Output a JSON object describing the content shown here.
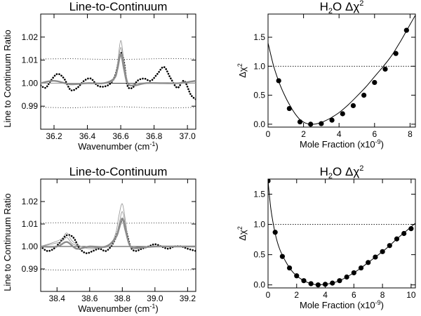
{
  "chart_data": [
    {
      "type": "line",
      "panel": "top-left",
      "title": "Line-to-Continuum",
      "xlabel": "Wavenumber (cm",
      "xlabel_sup": "-1",
      "xlabel_end": ")",
      "ylabel": "Line to Continuum Ratio",
      "xlim": [
        36.12,
        37.05
      ],
      "ylim": [
        0.98,
        1.03
      ],
      "xticks": [
        36.2,
        36.4,
        36.6,
        36.8,
        37.0
      ],
      "xtick_labels": [
        "36.2",
        "36.4",
        "36.6",
        "36.8",
        "37.0"
      ],
      "yticks": [
        0.99,
        1.0,
        1.01,
        1.02
      ],
      "ytick_labels": [
        "0.99",
        "1.00",
        "1.01",
        "1.02"
      ],
      "reference_line": 1.0,
      "noise_bounds": {
        "upper": {
          "x": [
            36.12,
            36.3,
            36.45,
            36.6,
            36.75,
            36.9,
            37.05
          ],
          "y": [
            1.0105,
            1.0106,
            1.0104,
            1.0103,
            1.0105,
            1.0107,
            1.0105
          ]
        },
        "lower": {
          "x": [
            36.12,
            36.3,
            36.45,
            36.6,
            36.75,
            36.9,
            37.05
          ],
          "y": [
            0.9895,
            0.9893,
            0.9896,
            0.9898,
            0.9894,
            0.9892,
            0.9895
          ]
        }
      },
      "series": [
        {
          "name": "observed",
          "style": "dotted-black",
          "x": [
            36.12,
            36.15,
            36.18,
            36.22,
            36.26,
            36.3,
            36.34,
            36.38,
            36.42,
            36.46,
            36.5,
            36.54,
            36.57,
            36.6,
            36.62,
            36.64,
            36.67,
            36.7,
            36.74,
            36.78,
            36.82,
            36.86,
            36.9,
            36.94,
            36.98,
            37.02,
            37.05
          ],
          "y": [
            0.999,
            0.998,
            1.001,
            1.004,
            1.002,
            0.997,
            0.998,
            1.001,
            1.002,
            0.999,
            0.9985,
            1.0,
            1.004,
            1.013,
            1.009,
            0.999,
            0.998,
            1.001,
            1.002,
            1.001,
            1.004,
            1.007,
            1.002,
            0.998,
            1.001,
            0.995,
            0.993
          ]
        },
        {
          "name": "model-1",
          "style": "gray-thin",
          "x": [
            36.12,
            36.3,
            36.45,
            36.52,
            36.56,
            36.58,
            36.6,
            36.62,
            36.64,
            36.66,
            36.7,
            36.8,
            36.9,
            37.05
          ],
          "y": [
            1.0,
            1.0,
            1.0,
            1.0,
            1.002,
            1.008,
            1.0185,
            1.009,
            1.001,
            0.999,
            1.0,
            1.0,
            1.0,
            1.0
          ]
        },
        {
          "name": "model-2",
          "style": "gray-thin",
          "x": [
            36.12,
            36.3,
            36.45,
            36.52,
            36.56,
            36.58,
            36.6,
            36.62,
            36.64,
            36.66,
            36.7,
            36.8,
            36.9,
            37.05
          ],
          "y": [
            1.0,
            1.0,
            1.0,
            1.0,
            1.0015,
            1.006,
            1.0155,
            1.007,
            1.0005,
            0.999,
            1.0,
            1.0,
            1.0,
            1.0
          ]
        },
        {
          "name": "model-3",
          "style": "gray-thick",
          "x": [
            36.12,
            36.2,
            36.3,
            36.4,
            36.5,
            36.56,
            36.58,
            36.6,
            36.62,
            36.64,
            36.68,
            36.75,
            36.85,
            36.95,
            37.05
          ],
          "y": [
            1.0,
            1.001,
            0.9995,
            1.0,
            1.0,
            1.002,
            1.006,
            1.0125,
            1.006,
            1.0,
            0.999,
            1.0,
            1.0,
            1.0,
            1.001
          ]
        }
      ]
    },
    {
      "type": "line",
      "panel": "top-right",
      "title": "H",
      "title_sub": "2",
      "title_mid": "O Δχ",
      "title_sup": "2",
      "xlabel": "Mole Fraction (x10",
      "xlabel_sup": "-9",
      "xlabel_end": ")",
      "ylabel": "Δχ",
      "ylabel_sup": "2",
      "xlim": [
        0,
        8.3
      ],
      "ylim": [
        -0.05,
        1.9
      ],
      "xticks": [
        0,
        2,
        4,
        6,
        8
      ],
      "xtick_labels": [
        "0",
        "2",
        "4",
        "6",
        "8"
      ],
      "yticks": [
        0.0,
        0.5,
        1.0,
        1.5
      ],
      "ytick_labels": [
        "0.0",
        "0.5",
        "1.0",
        "1.5"
      ],
      "reference_line": 1.0,
      "series": [
        {
          "name": "points",
          "style": "dots",
          "x": [
            0.6,
            1.2,
            1.8,
            2.4,
            3.0,
            3.6,
            4.2,
            4.8,
            5.4,
            6.0,
            6.6,
            7.2,
            7.8
          ],
          "y": [
            0.75,
            0.27,
            0.04,
            0.0,
            0.01,
            0.07,
            0.18,
            0.32,
            0.5,
            0.72,
            0.95,
            1.22,
            1.62
          ]
        },
        {
          "name": "fit",
          "style": "curve",
          "x": [
            0,
            0.3,
            0.6,
            0.9,
            1.2,
            1.5,
            1.8,
            2.1,
            2.4,
            2.7,
            3.0,
            3.3,
            3.6,
            4.0,
            4.5,
            5.0,
            5.5,
            6.0,
            6.5,
            7.0,
            7.5,
            8.0,
            8.3
          ],
          "y": [
            1.4,
            1.02,
            0.74,
            0.52,
            0.34,
            0.19,
            0.08,
            0.02,
            0.0,
            0.005,
            0.03,
            0.07,
            0.12,
            0.2,
            0.33,
            0.48,
            0.64,
            0.82,
            1.0,
            1.2,
            1.45,
            1.72,
            1.88
          ]
        }
      ]
    },
    {
      "type": "line",
      "panel": "bottom-left",
      "title": "Line-to-Continuum",
      "xlabel": "Wavenumber (cm",
      "xlabel_sup": "-1",
      "xlabel_end": ")",
      "ylabel": "Line to Continuum Ratio",
      "xlim": [
        38.3,
        39.25
      ],
      "ylim": [
        0.98,
        1.03
      ],
      "xticks": [
        38.4,
        38.6,
        38.8,
        39.0,
        39.2
      ],
      "xtick_labels": [
        "38.4",
        "38.6",
        "38.8",
        "39.0",
        "39.2"
      ],
      "yticks": [
        0.99,
        1.0,
        1.01,
        1.02
      ],
      "ytick_labels": [
        "0.99",
        "1.00",
        "1.01",
        "1.02"
      ],
      "reference_line": 1.0,
      "noise_bounds": {
        "upper": {
          "x": [
            38.3,
            38.45,
            38.6,
            38.8,
            39.0,
            39.25
          ],
          "y": [
            1.0105,
            1.0106,
            1.0104,
            1.0103,
            1.0105,
            1.0104
          ]
        },
        "lower": {
          "x": [
            38.3,
            38.45,
            38.6,
            38.8,
            39.0,
            39.25
          ],
          "y": [
            0.9897,
            0.9895,
            0.9897,
            0.9898,
            0.9896,
            0.9897
          ]
        }
      },
      "series": [
        {
          "name": "observed",
          "style": "dotted-black",
          "x": [
            38.3,
            38.34,
            38.38,
            38.42,
            38.46,
            38.5,
            38.54,
            38.58,
            38.62,
            38.66,
            38.7,
            38.74,
            38.77,
            38.8,
            38.82,
            38.85,
            38.88,
            38.92,
            38.96,
            39.0,
            39.04,
            39.08,
            39.12,
            39.16,
            39.2,
            39.25
          ],
          "y": [
            1.0,
            0.998,
            0.999,
            1.002,
            1.005,
            1.004,
            0.999,
            0.997,
            0.998,
            0.999,
            0.998,
            1.001,
            1.006,
            1.012,
            1.008,
            1.0,
            0.998,
            0.999,
            1.0,
            1.001,
            1.0,
            0.999,
            1.0,
            1.0,
            0.999,
            0.998
          ]
        },
        {
          "name": "model-1",
          "style": "gray-thin",
          "x": [
            38.3,
            38.42,
            38.46,
            38.5,
            38.6,
            38.72,
            38.76,
            38.78,
            38.8,
            38.82,
            38.84,
            38.88,
            39.0,
            39.25
          ],
          "y": [
            1.0,
            1.003,
            1.006,
            1.002,
            0.999,
            1.001,
            1.006,
            1.014,
            1.019,
            1.011,
            1.002,
            0.999,
            1.0,
            1.0
          ]
        },
        {
          "name": "model-2",
          "style": "gray-thin",
          "x": [
            38.3,
            38.42,
            38.46,
            38.5,
            38.6,
            38.72,
            38.76,
            38.78,
            38.8,
            38.82,
            38.84,
            38.88,
            39.0,
            39.25
          ],
          "y": [
            1.0,
            1.002,
            1.004,
            1.001,
            0.9995,
            1.0,
            1.004,
            1.01,
            1.0155,
            1.009,
            1.001,
            0.999,
            1.0,
            1.0
          ]
        },
        {
          "name": "model-3",
          "style": "gray-thick",
          "x": [
            38.3,
            38.4,
            38.46,
            38.52,
            38.6,
            38.7,
            38.76,
            38.78,
            38.8,
            38.82,
            38.85,
            38.9,
            39.0,
            39.1,
            39.25
          ],
          "y": [
            1.0,
            1.0,
            1.002,
            0.999,
            1.0,
            1.0,
            1.004,
            1.008,
            1.0125,
            1.007,
            1.0,
            0.9995,
            1.0,
            1.0,
            1.0
          ]
        }
      ]
    },
    {
      "type": "line",
      "panel": "bottom-right",
      "title": "H",
      "title_sub": "2",
      "title_mid": "O Δχ",
      "title_sup": "2",
      "xlabel": "Mole Fraction (x10",
      "xlabel_sup": "-9",
      "xlabel_end": ")",
      "ylabel": "Δχ",
      "ylabel_sup": "2",
      "xlim": [
        0,
        10.3
      ],
      "ylim": [
        -0.05,
        1.75
      ],
      "xticks": [
        0,
        2,
        4,
        6,
        8,
        10
      ],
      "xtick_labels": [
        "0",
        "2",
        "4",
        "6",
        "8",
        "10"
      ],
      "yticks": [
        0.0,
        0.5,
        1.0,
        1.5
      ],
      "ytick_labels": [
        "0.0",
        "0.5",
        "1.0",
        "1.5"
      ],
      "reference_line": 1.0,
      "series": [
        {
          "name": "points",
          "style": "dots",
          "x": [
            0.0,
            0.5,
            1.0,
            1.5,
            2.0,
            2.5,
            3.0,
            3.5,
            4.0,
            4.5,
            5.0,
            5.5,
            6.0,
            6.5,
            7.0,
            7.5,
            8.0,
            8.5,
            9.0,
            9.5,
            10.0
          ],
          "y": [
            1.72,
            0.87,
            0.47,
            0.28,
            0.15,
            0.07,
            0.02,
            0.0,
            0.01,
            0.03,
            0.07,
            0.13,
            0.2,
            0.28,
            0.37,
            0.46,
            0.55,
            0.65,
            0.76,
            0.85,
            0.93
          ]
        },
        {
          "name": "fit",
          "style": "curve",
          "x": [
            0,
            0.2,
            0.5,
            0.8,
            1.2,
            1.6,
            2.0,
            2.5,
            3.0,
            3.5,
            4.0,
            4.5,
            5.0,
            5.5,
            6.0,
            6.5,
            7.0,
            7.5,
            8.0,
            8.5,
            9.0,
            9.5,
            10.0,
            10.3
          ],
          "y": [
            1.72,
            1.25,
            0.85,
            0.6,
            0.4,
            0.25,
            0.15,
            0.07,
            0.02,
            0.0,
            0.01,
            0.03,
            0.07,
            0.13,
            0.2,
            0.28,
            0.37,
            0.46,
            0.55,
            0.65,
            0.76,
            0.86,
            0.96,
            1.02
          ]
        }
      ]
    }
  ]
}
